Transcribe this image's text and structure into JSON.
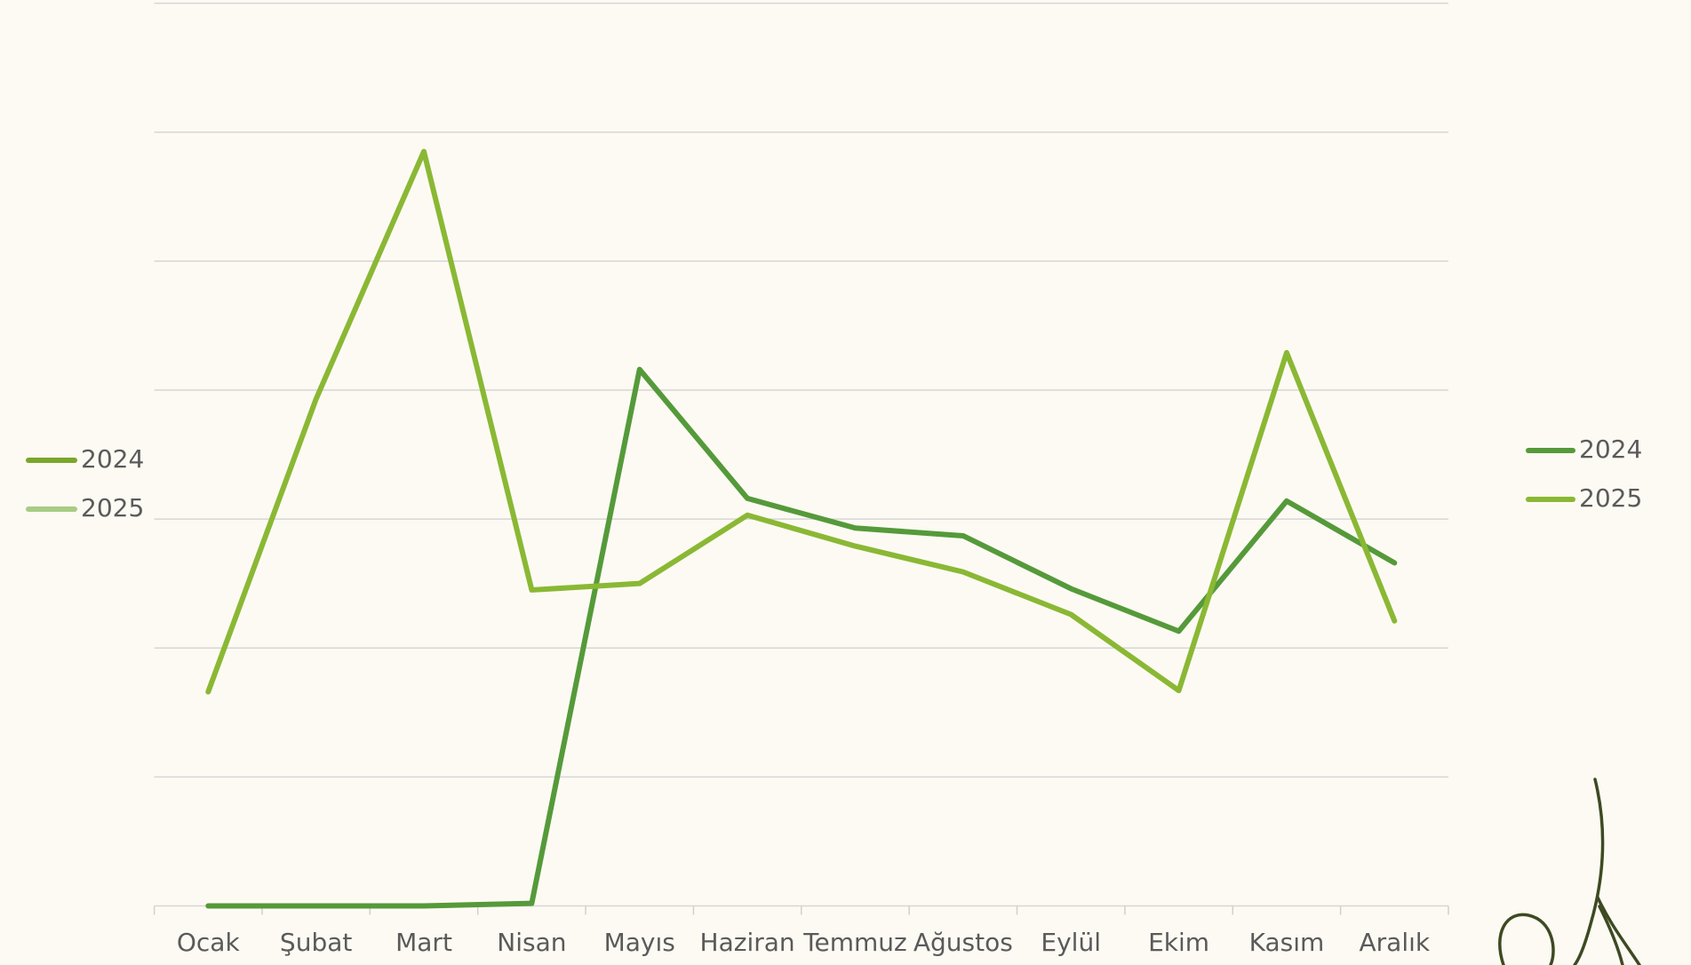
{
  "chart_data": {
    "type": "line",
    "categories": [
      "Ocak",
      "Şubat",
      "Mart",
      "Nisan",
      "Mayıs",
      "Haziran",
      "Temmuz",
      "Ağustos",
      "Eylül",
      "Ekim",
      "Kasım",
      "Aralık"
    ],
    "series": [
      {
        "name": "2024",
        "color": "#559a3a",
        "values": [
          0,
          0,
          0,
          0.02,
          4.16,
          3.16,
          2.93,
          2.87,
          2.46,
          2.13,
          3.14,
          2.66
        ]
      },
      {
        "name": "2025",
        "color": "#8ab834",
        "values": [
          1.66,
          3.93,
          5.85,
          2.45,
          2.5,
          3.03,
          2.79,
          2.59,
          2.26,
          1.67,
          4.29,
          2.21
        ]
      }
    ],
    "ylim": [
      0,
      7
    ],
    "yticks": [
      0,
      1,
      2,
      3,
      4,
      5,
      6,
      7
    ],
    "grid": true
  }
}
